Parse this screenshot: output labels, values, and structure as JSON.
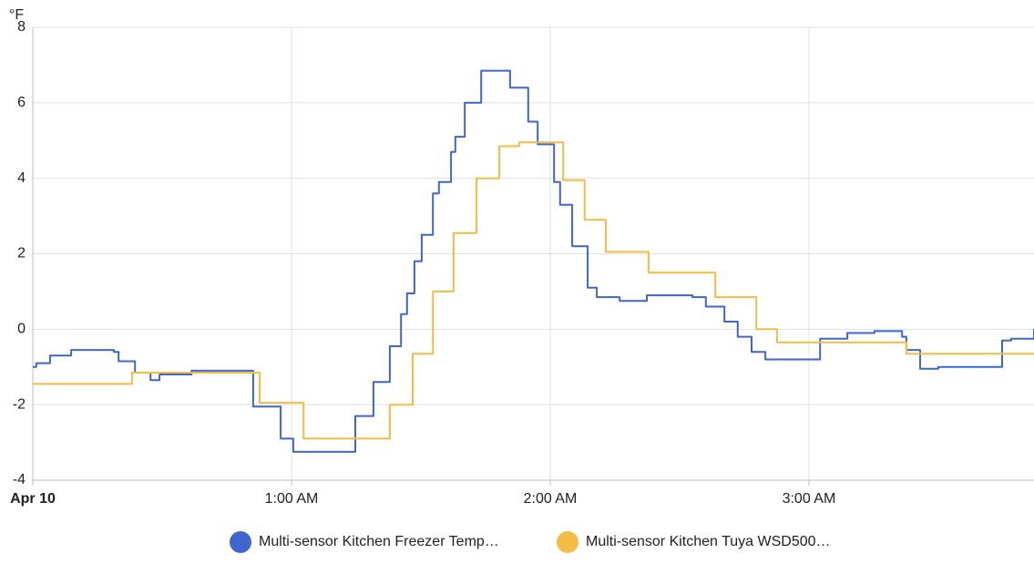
{
  "chart_data": {
    "type": "line",
    "step": true,
    "y_unit": "°F",
    "xlim": [
      0,
      232.2
    ],
    "xticks": [
      {
        "value": 0,
        "label": "Apr 10"
      },
      {
        "value": 60,
        "label": "1:00 AM"
      },
      {
        "value": 120,
        "label": "2:00 AM"
      },
      {
        "value": 180,
        "label": "3:00 AM"
      }
    ],
    "ylim": [
      -4,
      8
    ],
    "yticks": [
      -4,
      -2,
      0,
      2,
      4,
      6,
      8
    ],
    "grid": true,
    "legend": "bottom",
    "series": [
      {
        "name": "Multi-sensor Kitchen Freezer Temp…",
        "color": "#3f66cf",
        "x": [
          0,
          0.8,
          4.0,
          8.9,
          18.8,
          19.9,
          23.7,
          27.3,
          29.4,
          36.8,
          51.1,
          57.5,
          60.4,
          74.8,
          79.0,
          82.8,
          85.4,
          86.8,
          88.5,
          90.2,
          92.8,
          94.2,
          97.0,
          98.0,
          100.2,
          104.0,
          110.7,
          114.9,
          117.1,
          120.9,
          122.3,
          125.1,
          128.7,
          130.8,
          136.1,
          142.4,
          153.0,
          156.1,
          160.4,
          163.5,
          166.7,
          169.9,
          182.6,
          188.9,
          195.2,
          201.6,
          202.6,
          205.8,
          210.0,
          224.8,
          226.9,
          232.2
        ],
        "values": [
          -1.0,
          -0.9,
          -0.7,
          -0.55,
          -0.6,
          -0.85,
          -1.15,
          -1.35,
          -1.2,
          -1.1,
          -2.05,
          -2.9,
          -3.25,
          -2.3,
          -1.4,
          -0.45,
          0.4,
          0.95,
          1.8,
          2.5,
          3.6,
          3.9,
          4.7,
          5.1,
          6.0,
          6.85,
          6.4,
          5.5,
          4.9,
          3.9,
          3.3,
          2.2,
          1.1,
          0.85,
          0.75,
          0.9,
          0.85,
          0.6,
          0.2,
          -0.2,
          -0.6,
          -0.8,
          -0.25,
          -0.1,
          -0.05,
          -0.2,
          -0.55,
          -1.05,
          -1.0,
          -0.3,
          -0.25,
          0.0
        ]
      },
      {
        "name": "Multi-sensor Kitchen Tuya WSD500…",
        "color": "#f4bc45",
        "x": [
          0,
          23.0,
          52.6,
          62.8,
          82.8,
          88.1,
          92.8,
          97.6,
          102.9,
          108.2,
          112.8,
          123.0,
          128.0,
          132.9,
          142.8,
          158.3,
          167.8,
          172.6,
          202.6,
          232.2
        ],
        "values": [
          -1.45,
          -1.15,
          -1.95,
          -2.9,
          -2.0,
          -0.65,
          1.0,
          2.55,
          4.0,
          4.85,
          4.95,
          3.95,
          2.9,
          2.05,
          1.5,
          0.85,
          0.0,
          -0.35,
          -0.65,
          -0.65
        ]
      }
    ]
  }
}
